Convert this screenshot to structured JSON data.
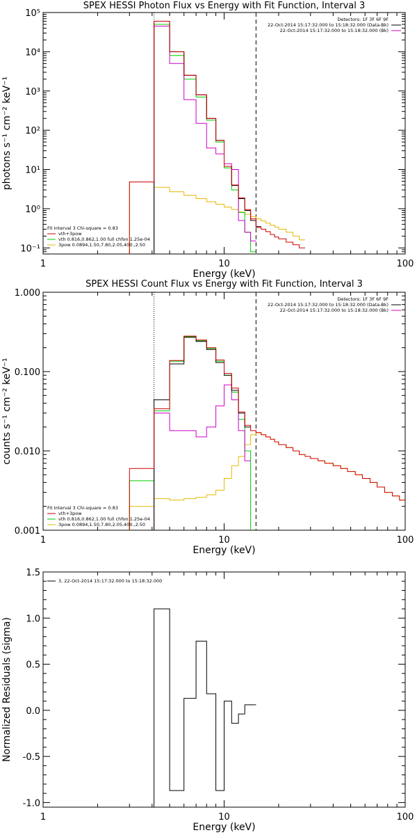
{
  "chart_data": [
    {
      "type": "line",
      "title": "SPEX HESSI Photon Flux vs Energy with Fit Function, Interval 3",
      "xlabel": "Energy (keV)",
      "ylabel": "photons s⁻¹ cm⁻² keV⁻¹",
      "xscale": "log",
      "yscale": "log",
      "xlim": [
        1,
        100
      ],
      "ylim": [
        0.07,
        100000
      ],
      "xticklabels": [
        "1",
        "10",
        "100"
      ],
      "yticklabels": [
        "10⁻¹",
        "10⁰",
        "10¹",
        "10²",
        "10³",
        "10⁴",
        "10⁵"
      ],
      "yticks": [
        0.1,
        1,
        10,
        100,
        1000,
        10000,
        100000
      ],
      "vlines": [
        {
          "x": 4.1,
          "style": "dotted"
        },
        {
          "x": 15,
          "style": "dashed"
        }
      ],
      "info_top_right": [
        "Detectors: 1F 3F 6F 9F",
        "22-Oct-2014 15:17:32.000 to 15:18:32.000 (Data-Bk)",
        "22-Oct-2014 15:17:32.000 to 15:18:32.000 (Bk)"
      ],
      "info_colors": [
        "#000000",
        "#cc00cc"
      ],
      "legend_lines": [
        "Fit Interval 3   Chi-square = 0.83",
        "vth+3pow",
        "vth 0.816,0.862,1.00  full chfon 1.25e-04",
        "3pow 0.0894,1.50,7.80,2.05,400.,2.50"
      ],
      "legend_colors": [
        "#cc0000",
        "#00cc00",
        "#e6b800"
      ],
      "x_edges": [
        3,
        4.1,
        5,
        6,
        7,
        8,
        9,
        10,
        11,
        12,
        13,
        14,
        15,
        16,
        17,
        18,
        19,
        20,
        22,
        24,
        26,
        28
      ],
      "series": [
        {
          "name": "Data-Bk",
          "color": "#000000",
          "values": [
            null,
            60000,
            10000,
            2500,
            800,
            200,
            55,
            12,
            3.9,
            1.8,
            0.9,
            0.5,
            0.35,
            null,
            null,
            null,
            null,
            null,
            null,
            null,
            null
          ]
        },
        {
          "name": "Bk",
          "color": "#cc00cc",
          "values": [
            null,
            45000,
            5000,
            600,
            150,
            35,
            25,
            14,
            10,
            0.5,
            0.25,
            0.15,
            null,
            null,
            null,
            null,
            null,
            null,
            null,
            null,
            null
          ]
        },
        {
          "name": "vth+3pow",
          "color": "#cc0000",
          "values": [
            4.8,
            60000,
            10000,
            2500,
            800,
            200,
            55,
            12,
            4.0,
            1.9,
            0.95,
            0.55,
            0.33,
            0.3,
            0.26,
            0.22,
            0.19,
            0.17,
            0.14,
            0.12,
            0.1
          ]
        },
        {
          "name": "vth",
          "color": "#00cc00",
          "values": [
            null,
            50000,
            8000,
            2000,
            700,
            180,
            50,
            11,
            3.0,
            0.8,
            0.25,
            0.08,
            null,
            null,
            null,
            null,
            null,
            null,
            null,
            null,
            null
          ]
        },
        {
          "name": "3pow",
          "color": "#e6b800",
          "values": [
            4.8,
            3.5,
            2.7,
            2.2,
            1.8,
            1.5,
            1.3,
            1.1,
            0.95,
            0.82,
            0.72,
            0.63,
            0.55,
            0.49,
            0.43,
            0.38,
            0.34,
            0.3,
            0.25,
            0.2,
            0.16
          ]
        }
      ]
    },
    {
      "type": "line",
      "title": "SPEX HESSI Count Flux vs Energy with Fit Function, Interval 3",
      "xlabel": "Energy (keV)",
      "ylabel": "counts s⁻¹ cm⁻² keV⁻¹",
      "xscale": "log",
      "yscale": "log",
      "xlim": [
        1,
        100
      ],
      "ylim": [
        0.001,
        1.0
      ],
      "xticklabels": [
        "1",
        "10",
        "100"
      ],
      "yticklabels": [
        "0.001",
        "0.010",
        "0.100",
        "1.000"
      ],
      "yticks": [
        0.001,
        0.01,
        0.1,
        1.0
      ],
      "vlines": [
        {
          "x": 4.1,
          "style": "dotted"
        },
        {
          "x": 15,
          "style": "dashed"
        }
      ],
      "info_top_right": [
        "Detectors: 1F 3F 6F 9F",
        "22-Oct-2014 15:17:32.000 to 15:18:32.000 (Data-Bk)",
        "22-Oct-2014 15:17:32.000 to 15:18:32.000 (Bk)"
      ],
      "info_colors": [
        "#000000",
        "#cc00cc"
      ],
      "legend_lines": [
        "Fit Interval 3   Chi-square = 0.83",
        "vth+3pow",
        "vth 0.816,0.862,1.00  full chfon 1.25e-04",
        "3pow 0.0894,1.50,7.80,2.05,400.,2.50"
      ],
      "legend_colors": [
        "#cc0000",
        "#00cc00",
        "#e6b800"
      ],
      "x_edges": [
        3,
        4.1,
        5,
        6,
        7,
        8,
        9,
        10,
        11,
        12,
        13,
        14,
        15,
        16,
        17,
        18,
        19,
        20,
        22,
        24,
        26,
        28,
        30,
        33,
        36,
        40,
        44,
        48,
        53,
        58,
        64,
        70,
        77,
        85,
        93,
        100
      ],
      "series": [
        {
          "name": "Data-Bk",
          "color": "#000000",
          "values": [
            null,
            0.044,
            0.125,
            0.27,
            0.24,
            0.19,
            0.13,
            0.09,
            0.058,
            0.03,
            0.02,
            null,
            null,
            null,
            null,
            null,
            null,
            null,
            null,
            null,
            null,
            null,
            null,
            null,
            null,
            null,
            null,
            null,
            null,
            null,
            null,
            null,
            null,
            null,
            null
          ]
        },
        {
          "name": "Bk",
          "color": "#cc00cc",
          "values": [
            null,
            0.03,
            0.018,
            0.018,
            0.015,
            0.02,
            0.037,
            0.068,
            0.044,
            0.018,
            0.0075,
            null,
            null,
            null,
            null,
            null,
            null,
            null,
            null,
            null,
            null,
            null,
            null,
            null,
            null,
            null,
            null,
            null,
            null,
            null,
            null,
            null,
            null,
            null,
            null
          ]
        },
        {
          "name": "vth+3pow",
          "color": "#cc0000",
          "values": [
            0.006,
            0.034,
            0.138,
            0.28,
            0.25,
            0.2,
            0.14,
            0.095,
            0.062,
            0.031,
            0.021,
            0.018,
            0.017,
            0.016,
            0.015,
            0.014,
            0.013,
            0.012,
            0.011,
            0.01,
            0.009,
            0.0085,
            0.008,
            0.0075,
            0.007,
            0.0065,
            0.006,
            0.0055,
            0.005,
            0.0045,
            0.004,
            0.0035,
            0.003,
            0.0027,
            0.0024
          ]
        },
        {
          "name": "vth",
          "color": "#00cc00",
          "values": [
            0.0042,
            0.032,
            0.135,
            0.275,
            0.245,
            0.195,
            0.135,
            0.09,
            0.055,
            0.025,
            0.01,
            0.0008,
            null,
            null,
            null,
            null,
            null,
            null,
            null,
            null,
            null,
            null,
            null,
            null,
            null,
            null,
            null,
            null,
            null,
            null,
            null,
            null,
            null,
            null,
            null
          ]
        },
        {
          "name": "3pow",
          "color": "#e6b800",
          "values": [
            0.002,
            0.0025,
            0.0024,
            0.0025,
            0.0026,
            0.0028,
            0.0032,
            0.0045,
            0.0065,
            0.0085,
            0.012,
            0.016,
            0.017,
            0.016,
            0.015,
            0.014,
            0.013,
            0.012,
            0.011,
            0.01,
            0.009,
            0.0085,
            0.008,
            0.0075,
            0.007,
            0.0065,
            0.006,
            0.0055,
            0.005,
            0.0045,
            0.004,
            0.0035,
            0.003,
            0.0027,
            0.0024
          ]
        }
      ]
    },
    {
      "type": "line",
      "title": "",
      "xlabel": "Energy (keV)",
      "ylabel": "Normalized Residuals (sigma)",
      "xscale": "log",
      "yscale": "linear",
      "xlim": [
        1,
        100
      ],
      "ylim": [
        -1.05,
        1.5
      ],
      "xticklabels": [
        "1",
        "10",
        "100"
      ],
      "yticklabels": [
        "-1.0",
        "-0.5",
        "0.0",
        "0.5",
        "1.0",
        "1.5"
      ],
      "yticks": [
        -1.0,
        -0.5,
        0.0,
        0.5,
        1.0,
        1.5
      ],
      "legend_lines": [
        "3, 22-Oct-2014 15:17:32.000 to 15:18:32.000"
      ],
      "x_edges": [
        4.1,
        5,
        6,
        7,
        8,
        9,
        10,
        11,
        12,
        13,
        14,
        15
      ],
      "series": [
        {
          "name": "3, 22-Oct-2014 15:17:32.000 to 15:18:32.000",
          "color": "#000000",
          "values": [
            1.1,
            -0.87,
            0.13,
            0.75,
            0.18,
            -0.87,
            0.1,
            -0.14,
            -0.04,
            0.06,
            0.06
          ]
        }
      ]
    }
  ]
}
